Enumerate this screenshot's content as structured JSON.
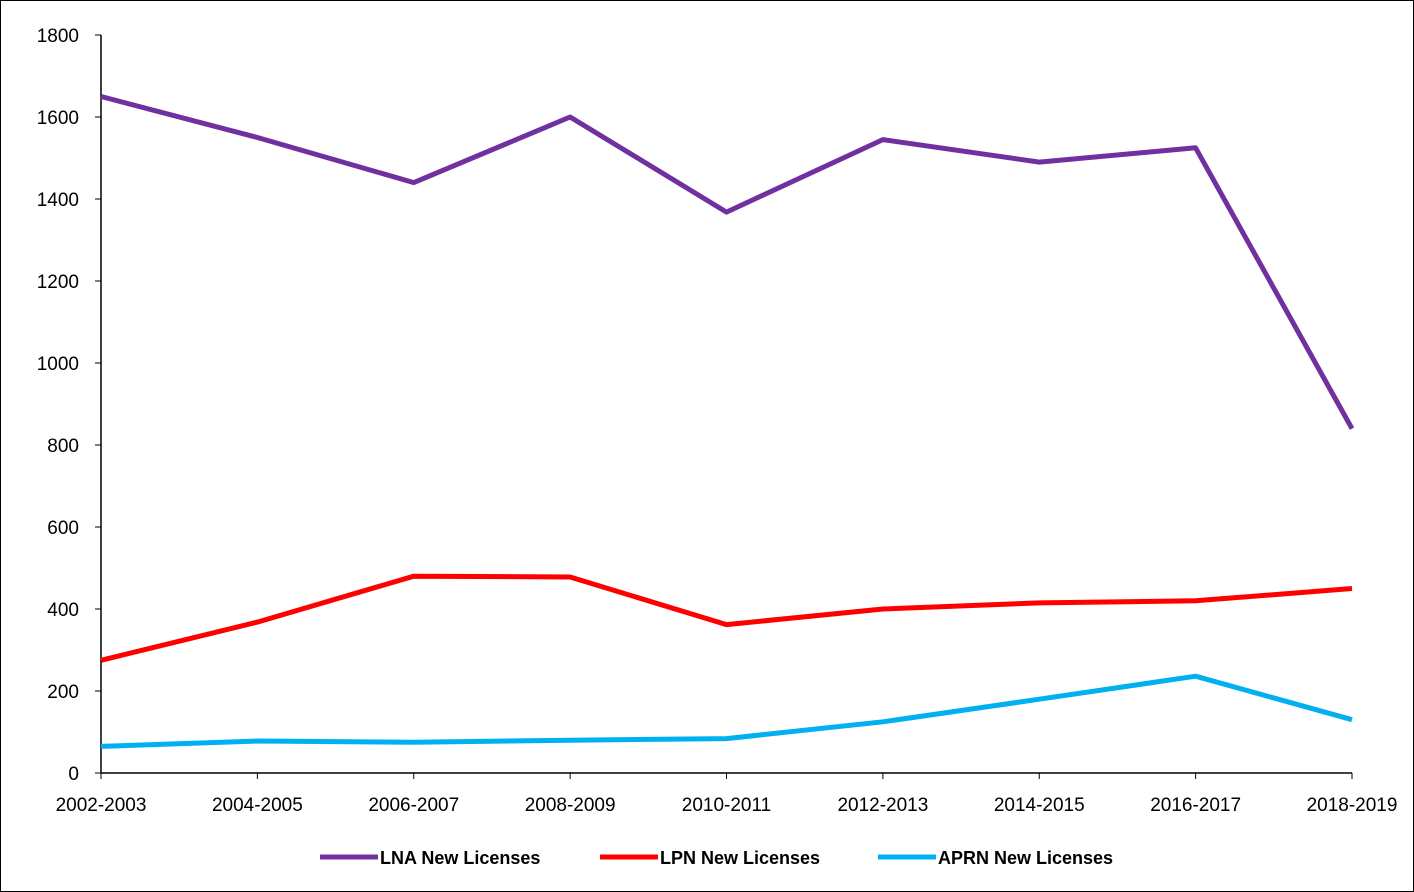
{
  "chart_data": {
    "type": "line",
    "title": "",
    "xlabel": "",
    "ylabel": "",
    "categories": [
      "2002-2003",
      "2004-2005",
      "2006-2007",
      "2008-2009",
      "2010-2011",
      "2012-2013",
      "2014-2015",
      "2016-2017",
      "2018-2019"
    ],
    "ylim": [
      0,
      1800
    ],
    "yticks": [
      0,
      200,
      400,
      600,
      800,
      1000,
      1200,
      1400,
      1600,
      1800
    ],
    "grid": false,
    "legend": "bottom",
    "series": [
      {
        "name": "LNA New Licenses",
        "color": "#7030A0",
        "values": [
          1650,
          1550,
          1440,
          1600,
          1368,
          1545,
          1490,
          1525,
          840
        ]
      },
      {
        "name": "LPN New Licenses",
        "color": "#FF0000",
        "values": [
          275,
          368,
          480,
          478,
          362,
          400,
          415,
          420,
          450
        ]
      },
      {
        "name": "APRN New Licenses",
        "color": "#00B0F0",
        "values": [
          65,
          78,
          75,
          80,
          84,
          125,
          180,
          236,
          130
        ]
      }
    ]
  }
}
